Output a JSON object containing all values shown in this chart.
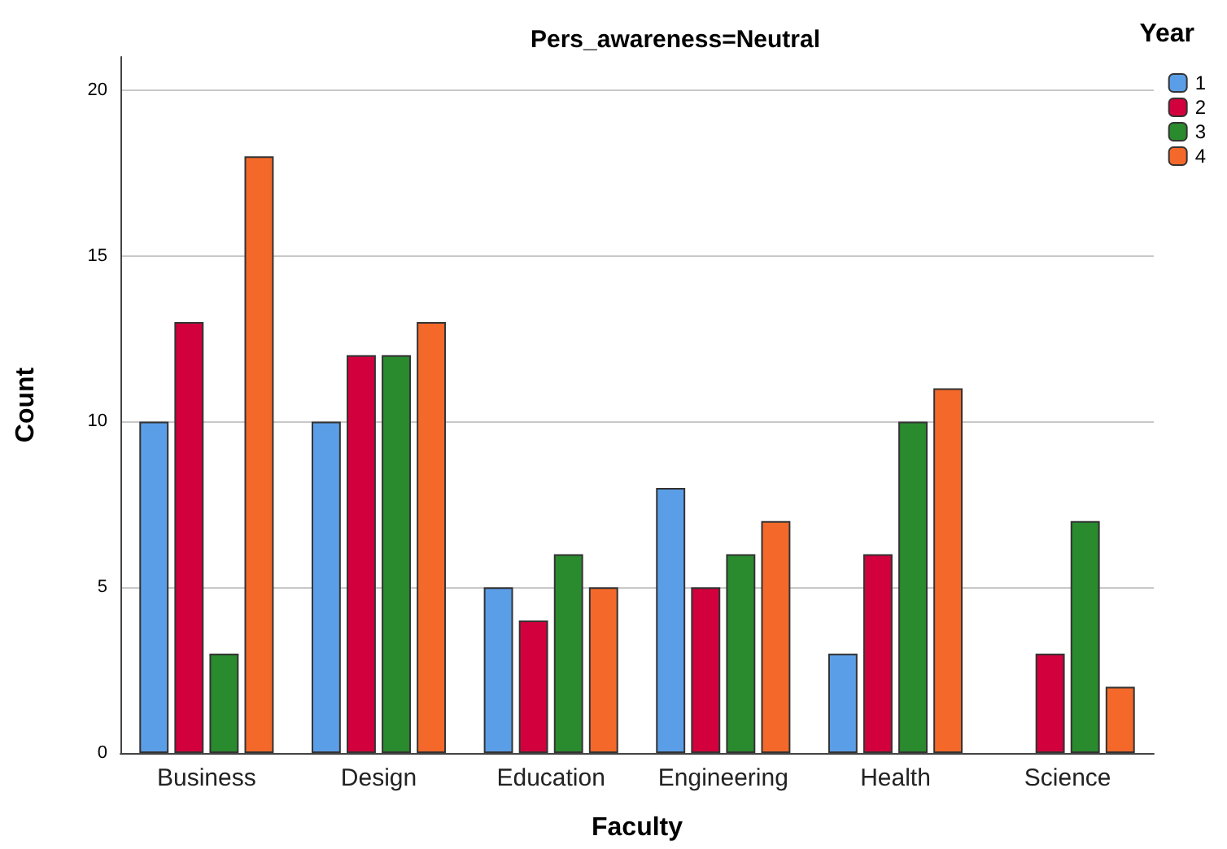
{
  "chart_data": {
    "type": "bar",
    "title": "Pers_awareness=Neutral",
    "xlabel": "Faculty",
    "ylabel": "Count",
    "legend_title": "Year",
    "categories": [
      "Business",
      "Design",
      "Education",
      "Engineering",
      "Health",
      "Science"
    ],
    "series": [
      {
        "name": "1",
        "color": "#5b9ee8",
        "values": [
          10,
          10,
          5,
          8,
          3,
          null
        ]
      },
      {
        "name": "2",
        "color": "#d2003c",
        "values": [
          13,
          12,
          4,
          5,
          6,
          3
        ]
      },
      {
        "name": "3",
        "color": "#2a8a2e",
        "values": [
          3,
          12,
          6,
          6,
          10,
          7
        ]
      },
      {
        "name": "4",
        "color": "#f4692a",
        "values": [
          18,
          13,
          5,
          7,
          11,
          2
        ]
      }
    ],
    "ylim": [
      0,
      21
    ],
    "yticks": [
      0,
      5,
      10,
      15,
      20
    ],
    "grid": "y",
    "legend": "top right"
  }
}
